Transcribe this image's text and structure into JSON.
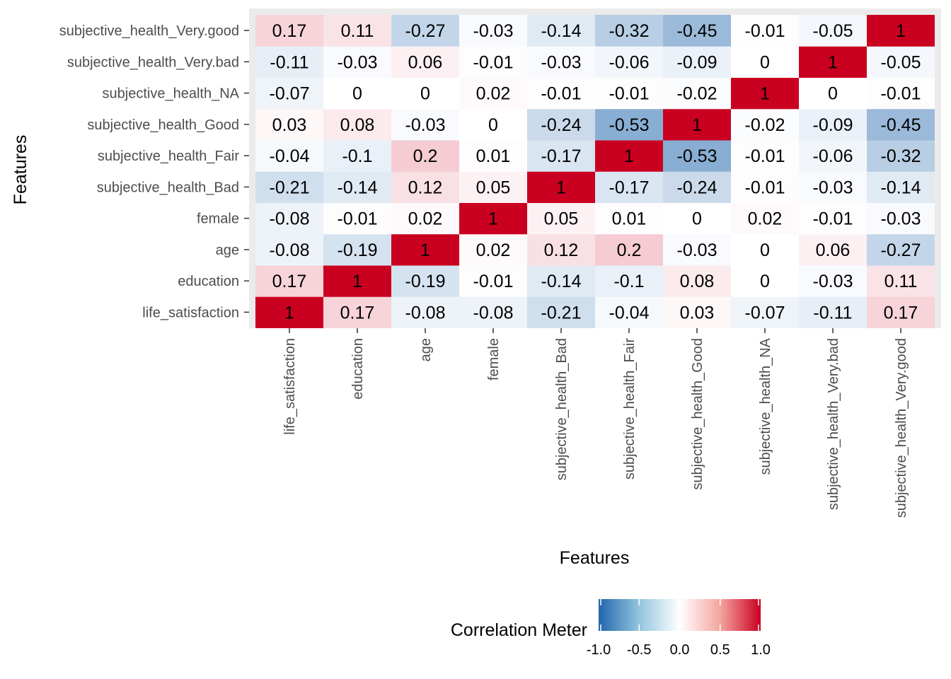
{
  "chart_data": {
    "type": "heatmap",
    "title": "",
    "xlabel": "Features",
    "ylabel": "Features",
    "categories": [
      "life_satisfaction",
      "education",
      "age",
      "female",
      "subjective_health_Bad",
      "subjective_health_Fair",
      "subjective_health_Good",
      "subjective_health_NA",
      "subjective_health_Very.bad",
      "subjective_health_Very.good"
    ],
    "matrix": [
      [
        1,
        0.17,
        -0.08,
        -0.08,
        -0.21,
        -0.04,
        0.03,
        -0.07,
        -0.11,
        0.17
      ],
      [
        0.17,
        1,
        -0.19,
        -0.01,
        -0.14,
        -0.1,
        0.08,
        0,
        -0.03,
        0.11
      ],
      [
        -0.08,
        -0.19,
        1,
        0.02,
        0.12,
        0.2,
        -0.03,
        0,
        0.06,
        -0.27
      ],
      [
        -0.08,
        -0.01,
        0.02,
        1,
        0.05,
        0.01,
        0,
        0.02,
        -0.01,
        -0.03
      ],
      [
        -0.21,
        -0.14,
        0.12,
        0.05,
        1,
        -0.17,
        -0.24,
        -0.01,
        -0.03,
        -0.14
      ],
      [
        -0.04,
        -0.1,
        0.2,
        0.01,
        -0.17,
        1,
        -0.53,
        -0.01,
        -0.06,
        -0.32
      ],
      [
        0.03,
        0.08,
        -0.03,
        0,
        -0.24,
        -0.53,
        1,
        -0.02,
        -0.09,
        -0.45
      ],
      [
        -0.07,
        0,
        0,
        0.02,
        -0.01,
        -0.01,
        -0.02,
        1,
        0,
        -0.01
      ],
      [
        -0.11,
        -0.03,
        0.06,
        -0.01,
        -0.03,
        -0.06,
        -0.09,
        0,
        1,
        -0.05
      ],
      [
        0.17,
        0.11,
        -0.27,
        -0.03,
        -0.14,
        -0.32,
        -0.45,
        -0.01,
        -0.05,
        1
      ]
    ],
    "color_scale": {
      "min": -1.0,
      "max": 1.0,
      "low_color": "#2166ac",
      "mid_color": "#ffffff",
      "high_color": "#ca0020"
    },
    "legend": {
      "title": "Correlation Meter",
      "ticks": [
        "-1.0",
        "-0.5",
        "0.0",
        "0.5",
        "1.0"
      ],
      "position": "bottom"
    },
    "panel_background": "#ebebeb"
  }
}
